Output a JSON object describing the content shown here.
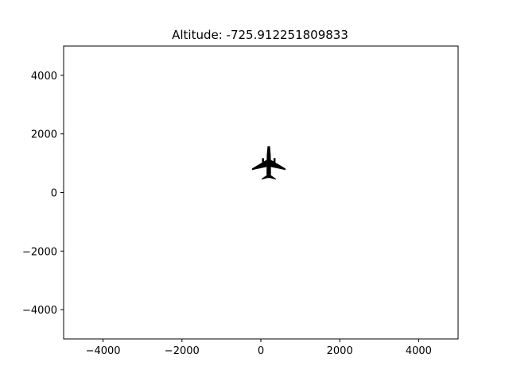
{
  "chart_data": {
    "type": "scatter",
    "title": "Altitude: -725.912251809833",
    "xlabel": "",
    "ylabel": "",
    "xlim": [
      -5000,
      5000
    ],
    "ylim": [
      -5000,
      5000
    ],
    "xticks": [
      -4000,
      -2000,
      0,
      2000,
      4000
    ],
    "yticks": [
      -4000,
      -2000,
      0,
      2000,
      4000
    ],
    "xtick_labels": [
      "−4000",
      "−2000",
      "0",
      "2000",
      "4000"
    ],
    "ytick_labels": [
      "−4000",
      "−2000",
      "0",
      "2000",
      "4000"
    ],
    "grid": false,
    "legend": "none",
    "marker": "airplane-icon",
    "marker_color": "#000000",
    "points": [
      {
        "x": 200,
        "y": 900
      }
    ]
  }
}
